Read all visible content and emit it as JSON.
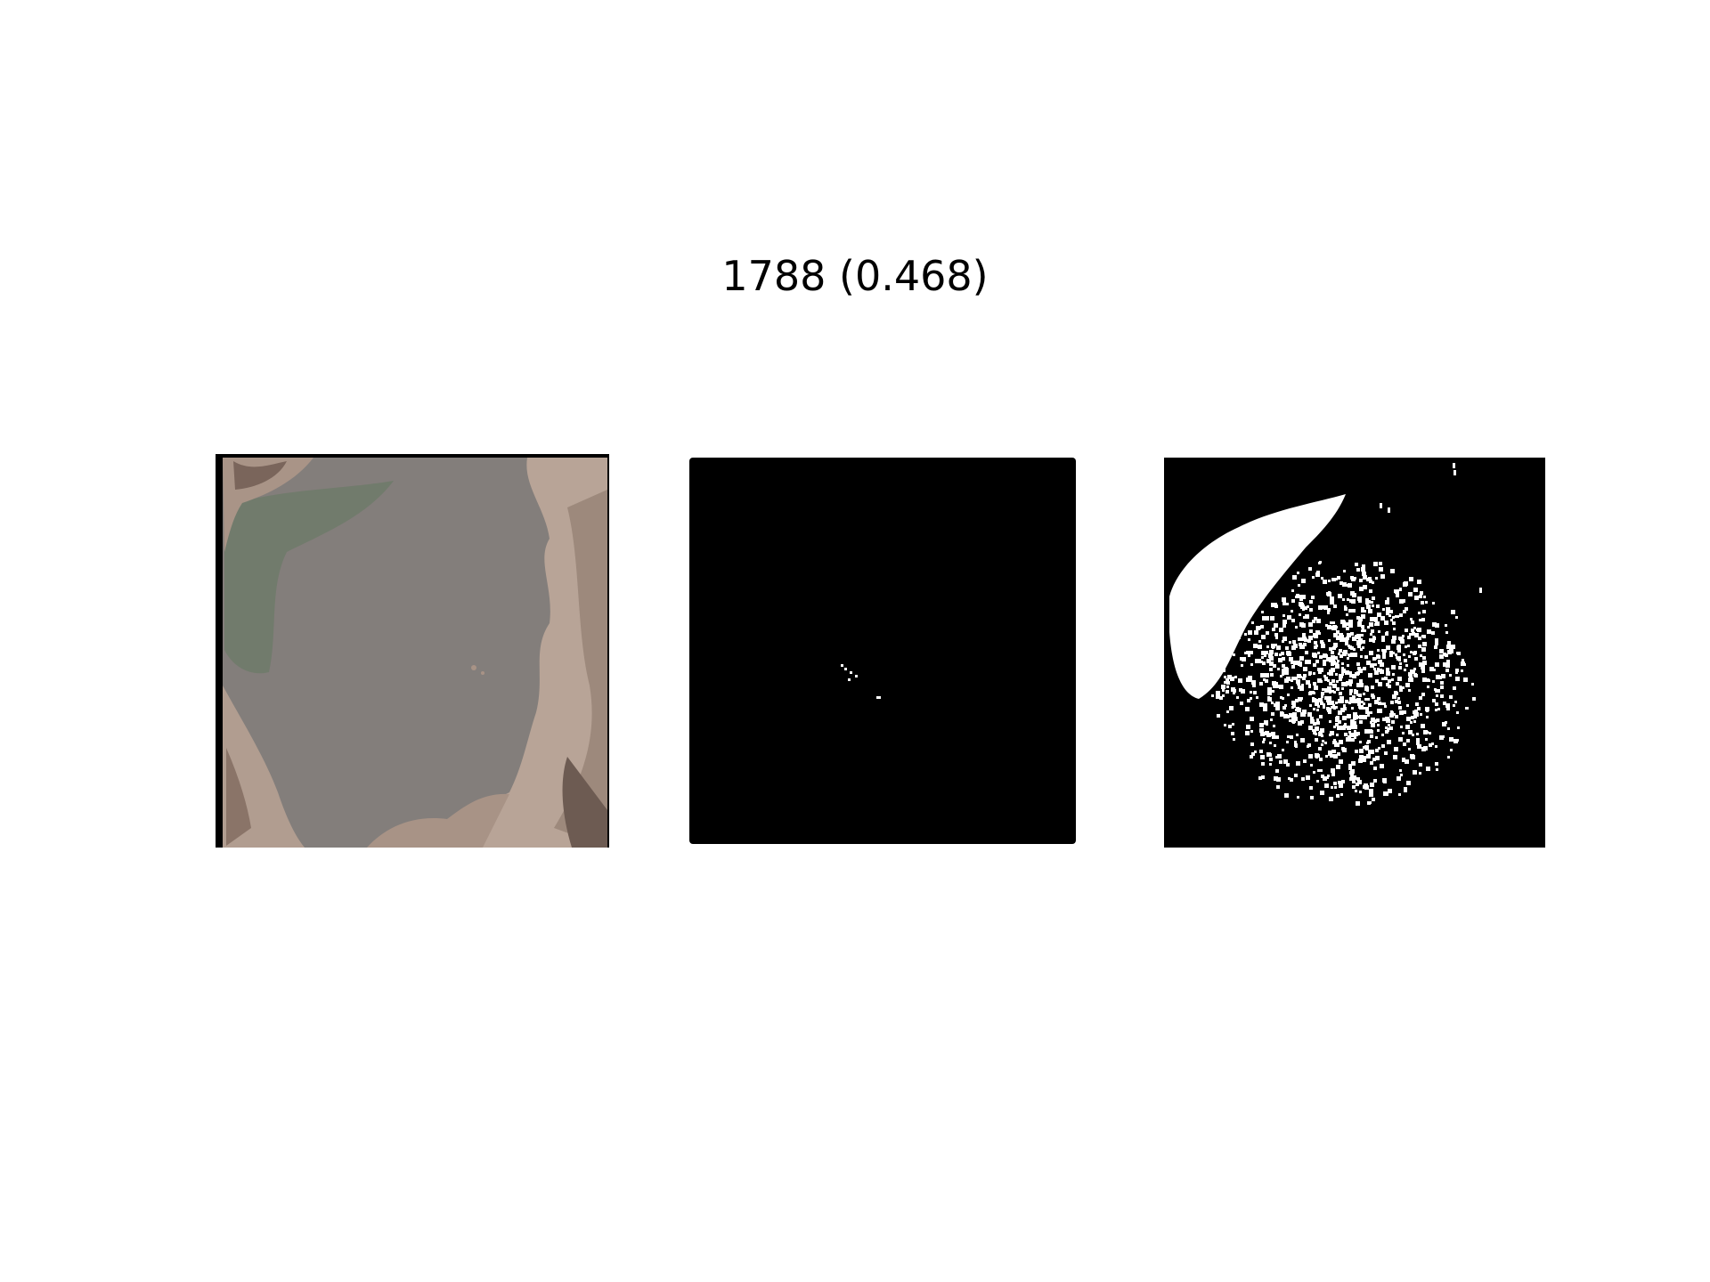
{
  "figure": {
    "title": "1788 (0.468)"
  },
  "panels": [
    {
      "name": "satellite-image",
      "kind": "rgb"
    },
    {
      "name": "ground-truth-mask",
      "kind": "binary-mask"
    },
    {
      "name": "predicted-mask",
      "kind": "binary-mask"
    }
  ],
  "colors": {
    "background": "#ffffff",
    "mask_background": "#000000",
    "mask_foreground": "#ffffff",
    "water": "#837e7b",
    "water_green": "#6f7a6a",
    "shore": "#b8a497",
    "shore_dark": "#8a7468"
  }
}
